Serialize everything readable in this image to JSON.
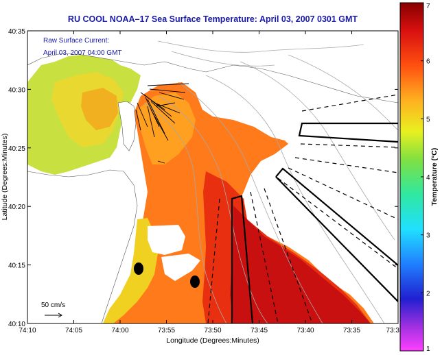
{
  "title": "RU COOL  NOAA–17  Sea Surface Temperature:  April 03, 2007 0301 GMT",
  "legend": {
    "line1": "Raw Surface Current:",
    "line2": "April 03, 2007 04:00 GMT"
  },
  "scale": {
    "label": "50 cm/s"
  },
  "axes": {
    "xlabel": "Longitude (Degrees:Minutes)",
    "ylabel": "Latitude (Degrees:Minutes)",
    "x_ticks": [
      "74:10",
      "74:05",
      "74:00",
      "73:55",
      "73:50",
      "73:45",
      "73:40",
      "73:35",
      "73:3"
    ],
    "y_ticks": [
      "40:35",
      "40:30",
      "40:25",
      "40:20",
      "40:15",
      "40:10"
    ]
  },
  "colorbar": {
    "label": "Temperature (°C)",
    "ticks": [
      "7",
      "6",
      "5",
      "4",
      "3",
      "2",
      "1"
    ],
    "range": [
      1,
      7
    ]
  },
  "colors": {
    "land": "#ffffff",
    "title": "#1a1aa8",
    "bathymetry": "#a8a8a8"
  }
}
